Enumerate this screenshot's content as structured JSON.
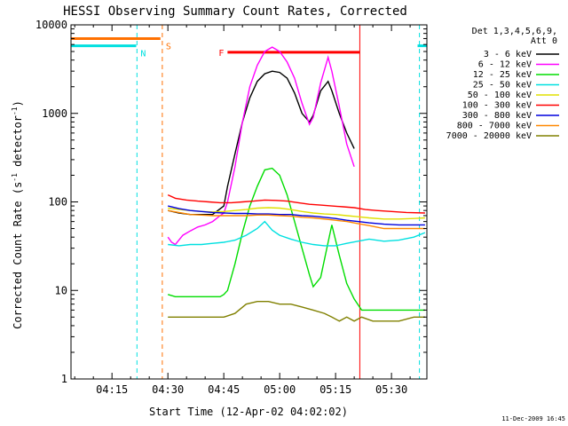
{
  "chart_data": {
    "type": "line",
    "title": "HESSI Observing Summary Count Rates, Corrected",
    "xlabel": "Start Time (12-Apr-02 04:02:02)",
    "ylabel": "Corrected Count Rate (s⁻¹ detector⁻¹)",
    "ylabel_base": "Corrected Count Rate (s",
    "ylabel_sup1": "-1",
    "ylabel_mid": " detector",
    "ylabel_sup2": "-1",
    "ylabel_end": ")",
    "x_tick_labels": [
      "04:15",
      "04:30",
      "04:45",
      "05:00",
      "05:15",
      "05:30"
    ],
    "x_tick_minutes": [
      255,
      270,
      285,
      300,
      315,
      330
    ],
    "xlim_minutes": [
      244,
      339.5
    ],
    "y_scale": "log",
    "ylim": [
      1,
      10000
    ],
    "y_tick_labels": [
      "1",
      "10",
      "100",
      "1000",
      "10000"
    ],
    "y_tick_values": [
      1,
      10,
      100,
      1000,
      10000
    ],
    "grid": false,
    "footer_date": "11-Dec-2009 16:45",
    "legend": {
      "placement": "right",
      "header_line1": "Det 1,3,4,5,6,9,",
      "header_line2": "Att 0"
    },
    "annotations": {
      "N": {
        "label": "N",
        "color": "#00e0e0",
        "intervals": [
          [
            244,
            261.5
          ],
          [
            337,
            339.5
          ]
        ],
        "level": 5800,
        "vlines": [
          261.7,
          337.5
        ]
      },
      "S": {
        "label": "S",
        "color": "#ff7000",
        "intervals": [
          [
            244,
            268
          ]
        ],
        "level": 7000,
        "vlines": [
          268.5
        ]
      },
      "F": {
        "label": "F",
        "color": "#ff0000",
        "intervals": [
          [
            286,
            321.5
          ]
        ],
        "level": 4900,
        "vlines": [
          321.5
        ]
      }
    },
    "series": [
      {
        "name": "3 - 6 keV",
        "color": "#000000",
        "x": [
          270,
          273,
          276,
          279,
          282,
          285,
          286,
          288,
          290,
          292,
          294,
          296,
          298,
          300,
          302,
          304,
          306,
          308,
          309,
          311,
          313,
          314,
          316,
          318,
          320
        ],
        "y": [
          80,
          75,
          72,
          72,
          72,
          90,
          150,
          350,
          800,
          1500,
          2300,
          2800,
          3000,
          2900,
          2500,
          1700,
          1000,
          800,
          950,
          1800,
          2300,
          1800,
          1000,
          600,
          400
        ]
      },
      {
        "name": "6 - 12 keV",
        "color": "#ff00ff",
        "x": [
          270,
          271,
          272,
          274,
          276,
          278,
          280,
          282,
          284,
          285,
          286,
          288,
          290,
          292,
          294,
          296,
          298,
          300,
          302,
          304,
          306,
          308,
          309,
          311,
          313,
          314,
          316,
          318,
          320
        ],
        "y": [
          40,
          35,
          33,
          42,
          47,
          52,
          55,
          60,
          70,
          75,
          100,
          250,
          800,
          2000,
          3500,
          5000,
          5600,
          5000,
          3800,
          2500,
          1300,
          750,
          900,
          2200,
          4300,
          3000,
          1200,
          450,
          250
        ]
      },
      {
        "name": "12 - 25 keV",
        "color": "#00dd00",
        "x": [
          270,
          272,
          274,
          276,
          278,
          280,
          282,
          284,
          285,
          286,
          288,
          290,
          292,
          294,
          296,
          298,
          300,
          302,
          304,
          306,
          308,
          309,
          311,
          313,
          314,
          316,
          318,
          320,
          322,
          324,
          330,
          339
        ],
        "y": [
          9,
          8.5,
          8.5,
          8.5,
          8.5,
          8.5,
          8.5,
          8.5,
          9,
          10,
          20,
          45,
          90,
          150,
          230,
          240,
          200,
          120,
          60,
          30,
          15,
          11,
          14,
          35,
          55,
          25,
          12,
          8,
          6,
          6,
          6,
          6
        ]
      },
      {
        "name": "25 - 50 keV",
        "color": "#00e0e0",
        "x": [
          270,
          273,
          276,
          279,
          282,
          285,
          288,
          291,
          294,
          296,
          298,
          300,
          303,
          306,
          309,
          312,
          315,
          318,
          321,
          324,
          328,
          332,
          336,
          339
        ],
        "y": [
          33,
          32,
          33,
          33,
          34,
          35,
          37,
          42,
          50,
          60,
          48,
          42,
          38,
          35,
          33,
          32,
          32,
          34,
          36,
          38,
          36,
          37,
          40,
          45
        ]
      },
      {
        "name": "50 - 100 keV",
        "color": "#e0e000",
        "x": [
          270,
          273,
          276,
          279,
          282,
          285,
          288,
          291,
          294,
          297,
          300,
          303,
          306,
          309,
          312,
          315,
          318,
          321,
          324,
          328,
          332,
          336,
          339
        ],
        "y": [
          85,
          82,
          80,
          78,
          77,
          78,
          80,
          82,
          85,
          86,
          85,
          82,
          78,
          75,
          73,
          72,
          70,
          68,
          66,
          64,
          64,
          65,
          66
        ]
      },
      {
        "name": "100 - 300 keV",
        "color": "#ff0000",
        "x": [
          270,
          272,
          275,
          278,
          281,
          284,
          287,
          290,
          293,
          296,
          299,
          302,
          305,
          308,
          311,
          314,
          317,
          320,
          323,
          326,
          330,
          334,
          339
        ],
        "y": [
          120,
          110,
          105,
          102,
          100,
          98,
          98,
          100,
          102,
          105,
          104,
          102,
          98,
          94,
          92,
          90,
          88,
          86,
          82,
          80,
          78,
          76,
          75
        ]
      },
      {
        "name": "300 - 800 keV",
        "color": "#0000dd",
        "x": [
          270,
          273,
          276,
          279,
          282,
          285,
          288,
          291,
          294,
          297,
          300,
          303,
          306,
          309,
          312,
          315,
          318,
          321,
          324,
          328,
          332,
          336,
          339
        ],
        "y": [
          90,
          84,
          80,
          78,
          76,
          75,
          74,
          74,
          73,
          73,
          72,
          72,
          70,
          69,
          67,
          65,
          62,
          60,
          58,
          56,
          55,
          55,
          55
        ]
      },
      {
        "name": "800 - 7000 keV",
        "color": "#ff8800",
        "x": [
          270,
          273,
          276,
          279,
          282,
          285,
          288,
          291,
          294,
          297,
          300,
          303,
          306,
          309,
          312,
          315,
          318,
          321,
          324,
          328,
          332,
          336,
          339
        ],
        "y": [
          80,
          76,
          72,
          71,
          70,
          70,
          70,
          70,
          71,
          71,
          70,
          69,
          67,
          66,
          64,
          62,
          60,
          57,
          54,
          50,
          50,
          50,
          50
        ]
      },
      {
        "name": "7000 - 20000 keV",
        "color": "#808000",
        "x": [
          270,
          273,
          276,
          279,
          282,
          285,
          288,
          291,
          294,
          297,
          300,
          303,
          306,
          309,
          312,
          314,
          316,
          318,
          320,
          322,
          325,
          328,
          332,
          336,
          339
        ],
        "y": [
          5,
          5,
          5,
          5,
          5,
          5,
          5.5,
          7,
          7.5,
          7.5,
          7,
          7,
          6.5,
          6,
          5.5,
          5,
          4.5,
          5,
          4.5,
          5,
          4.5,
          4.5,
          4.5,
          5,
          5
        ]
      }
    ]
  }
}
